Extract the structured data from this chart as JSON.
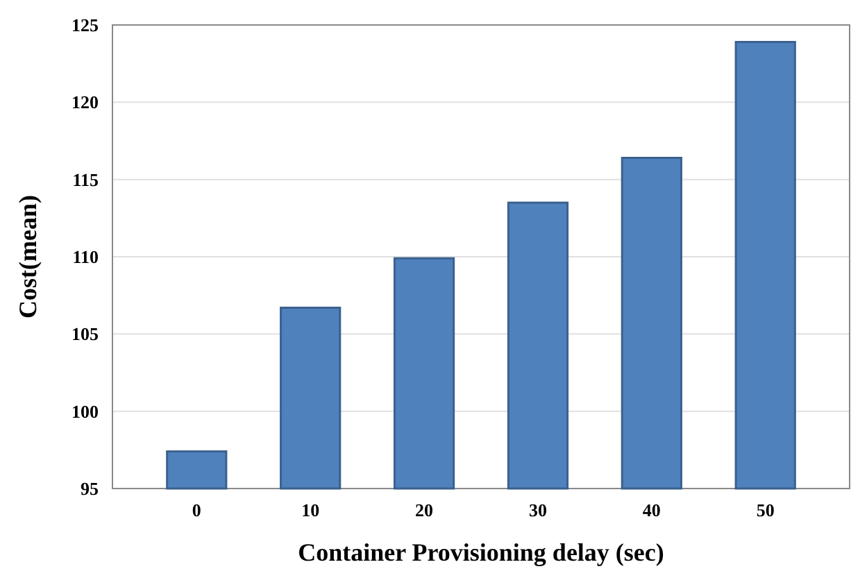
{
  "chart_data": {
    "type": "bar",
    "xlabel": "Container Provisioning delay (sec)",
    "ylabel": "Cost(mean)",
    "categories": [
      "0",
      "10",
      "20",
      "30",
      "40",
      "50"
    ],
    "values": [
      97.4,
      106.7,
      109.9,
      113.5,
      116.4,
      123.9
    ],
    "color": "#4f81bd",
    "ylim": [
      95,
      125
    ],
    "yticks": [
      95,
      100,
      105,
      110,
      115,
      120,
      125
    ],
    "grid": "y"
  }
}
